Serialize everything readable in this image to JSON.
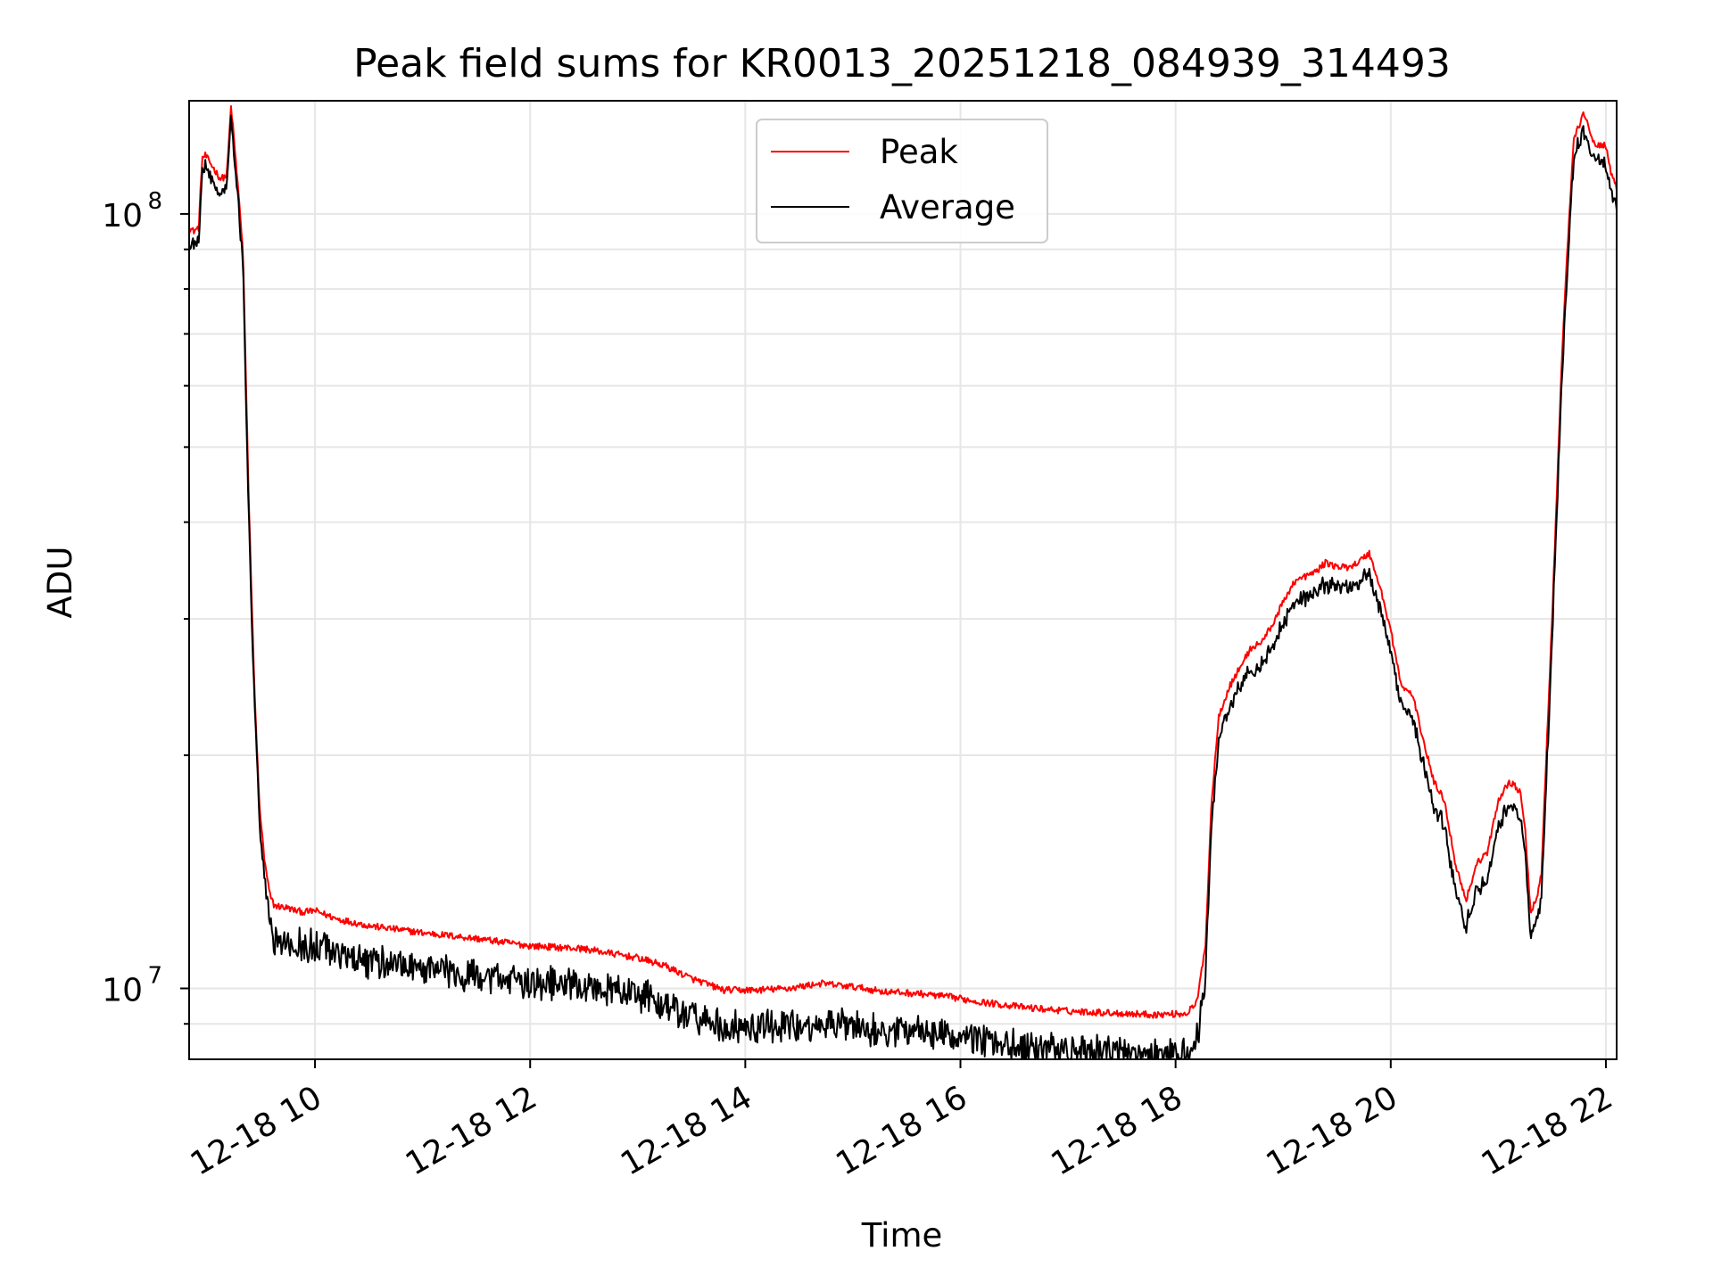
{
  "chart_data": {
    "type": "line",
    "title": "Peak field sums for KR0013_20251218_084939_314493",
    "xlabel": "Time",
    "ylabel": "ADU",
    "yscale": "log",
    "xlim": [
      8.83,
      22.1
    ],
    "ylim": [
      8100000,
      140000000
    ],
    "grid": true,
    "legend_position": "top-center",
    "x_ticks": [
      10,
      12,
      14,
      16,
      18,
      20,
      22
    ],
    "x_tick_labels": [
      "12-18 10",
      "12-18 12",
      "12-18 14",
      "12-18 16",
      "12-18 18",
      "12-18 20",
      "12-18 22"
    ],
    "y_ticks": [
      {
        "value": 10000000,
        "base": "10",
        "exp": "7"
      },
      {
        "value": 100000000,
        "base": "10",
        "exp": "8"
      }
    ],
    "series": [
      {
        "name": "Peak",
        "color": "#ff0000",
        "x": [
          8.83,
          8.87,
          8.92,
          8.95,
          8.98,
          9.05,
          9.12,
          9.18,
          9.22,
          9.28,
          9.33,
          9.38,
          9.43,
          9.48,
          9.53,
          9.58,
          9.62,
          9.68,
          9.75,
          9.82,
          9.9,
          10.0,
          10.2,
          10.5,
          10.8,
          11.0,
          11.5,
          12.0,
          12.5,
          13.0,
          13.25,
          13.5,
          13.8,
          14.1,
          14.4,
          14.7,
          15.0,
          15.3,
          15.6,
          15.9,
          16.2,
          16.6,
          17.0,
          17.4,
          17.8,
          18.1,
          18.2,
          18.28,
          18.33,
          18.4,
          18.5,
          18.6,
          18.7,
          18.8,
          18.9,
          19.0,
          19.1,
          19.2,
          19.3,
          19.4,
          19.5,
          19.6,
          19.7,
          19.8,
          19.9,
          20.0,
          20.1,
          20.2,
          20.3,
          20.4,
          20.5,
          20.6,
          20.7,
          20.8,
          20.9,
          21.0,
          21.1,
          21.2,
          21.25,
          21.3,
          21.35,
          21.4,
          21.5,
          21.6,
          21.7,
          21.8,
          21.9,
          22.0,
          22.05,
          22.1
        ],
        "y": [
          96000000,
          95000000,
          96000000,
          118000000,
          119000000,
          115000000,
          111000000,
          112000000,
          138000000,
          110000000,
          90000000,
          45000000,
          26000000,
          17500000,
          14600000,
          13200000,
          12800000,
          12750000,
          12700000,
          12600000,
          12550000,
          12600000,
          12300000,
          12050000,
          11900000,
          11800000,
          11600000,
          11350000,
          11250000,
          10950000,
          10700000,
          10300000,
          9950000,
          9950000,
          10000000,
          10150000,
          10050000,
          9900000,
          9850000,
          9750000,
          9600000,
          9450000,
          9350000,
          9300000,
          9250000,
          9280000,
          9600000,
          11500000,
          17000000,
          22500000,
          24500000,
          26000000,
          27500000,
          28000000,
          29500000,
          31500000,
          33500000,
          34000000,
          34500000,
          35500000,
          35000000,
          35000000,
          35500000,
          36500000,
          33000000,
          29000000,
          24500000,
          24000000,
          21000000,
          18500000,
          17500000,
          14500000,
          13000000,
          14500000,
          15000000,
          17500000,
          18500000,
          18000000,
          16000000,
          12500000,
          13000000,
          14000000,
          30000000,
          70000000,
          125000000,
          135000000,
          122000000,
          123000000,
          112000000,
          108000000
        ]
      },
      {
        "name": "Average",
        "color": "#000000",
        "x": [
          8.83,
          8.87,
          8.92,
          8.95,
          8.98,
          9.05,
          9.12,
          9.18,
          9.22,
          9.28,
          9.33,
          9.38,
          9.43,
          9.48,
          9.53,
          9.58,
          9.62,
          9.68,
          9.75,
          9.82,
          9.9,
          10.0,
          10.2,
          10.5,
          10.8,
          11.0,
          11.5,
          12.0,
          12.5,
          13.0,
          13.25,
          13.5,
          13.8,
          14.1,
          14.4,
          14.7,
          15.0,
          15.3,
          15.6,
          15.9,
          16.2,
          16.6,
          17.0,
          17.4,
          17.8,
          18.1,
          18.2,
          18.28,
          18.33,
          18.4,
          18.5,
          18.6,
          18.7,
          18.8,
          18.9,
          19.0,
          19.1,
          19.2,
          19.3,
          19.4,
          19.5,
          19.6,
          19.7,
          19.8,
          19.9,
          20.0,
          20.1,
          20.2,
          20.3,
          20.4,
          20.5,
          20.6,
          20.7,
          20.8,
          20.9,
          21.0,
          21.1,
          21.2,
          21.25,
          21.3,
          21.35,
          21.4,
          21.5,
          21.6,
          21.7,
          21.8,
          21.9,
          22.0,
          22.05,
          22.1
        ],
        "y": [
          94000000,
          93000000,
          94000000,
          116000000,
          117000000,
          113000000,
          109000000,
          110000000,
          136000000,
          108000000,
          88000000,
          44000000,
          25500000,
          17000000,
          14000000,
          12500000,
          12100000,
          12050000,
          12000000,
          11900000,
          11850000,
          11900000,
          11600000,
          11350000,
          11200000,
          11100000,
          10900000,
          10650000,
          10550000,
          10250000,
          10000000,
          9650000,
          9300000,
          9300000,
          9350000,
          9500000,
          9400000,
          9250000,
          9200000,
          9100000,
          8950000,
          8800000,
          8700000,
          8650000,
          8600000,
          8650000,
          8950000,
          10800000,
          16200000,
          21500000,
          23500000,
          25000000,
          26300000,
          26800000,
          28300000,
          30200000,
          32200000,
          32600000,
          33100000,
          34100000,
          33600000,
          33600000,
          34100000,
          35000000,
          31600000,
          27800000,
          23400000,
          22900000,
          20000000,
          17600000,
          16600000,
          13700000,
          12300000,
          13700000,
          14200000,
          16600000,
          17600000,
          17100000,
          15200000,
          11800000,
          12300000,
          13300000,
          28800000,
          67500000,
          121000000,
          131000000,
          118000000,
          119000000,
          108000000,
          104000000
        ]
      }
    ]
  }
}
